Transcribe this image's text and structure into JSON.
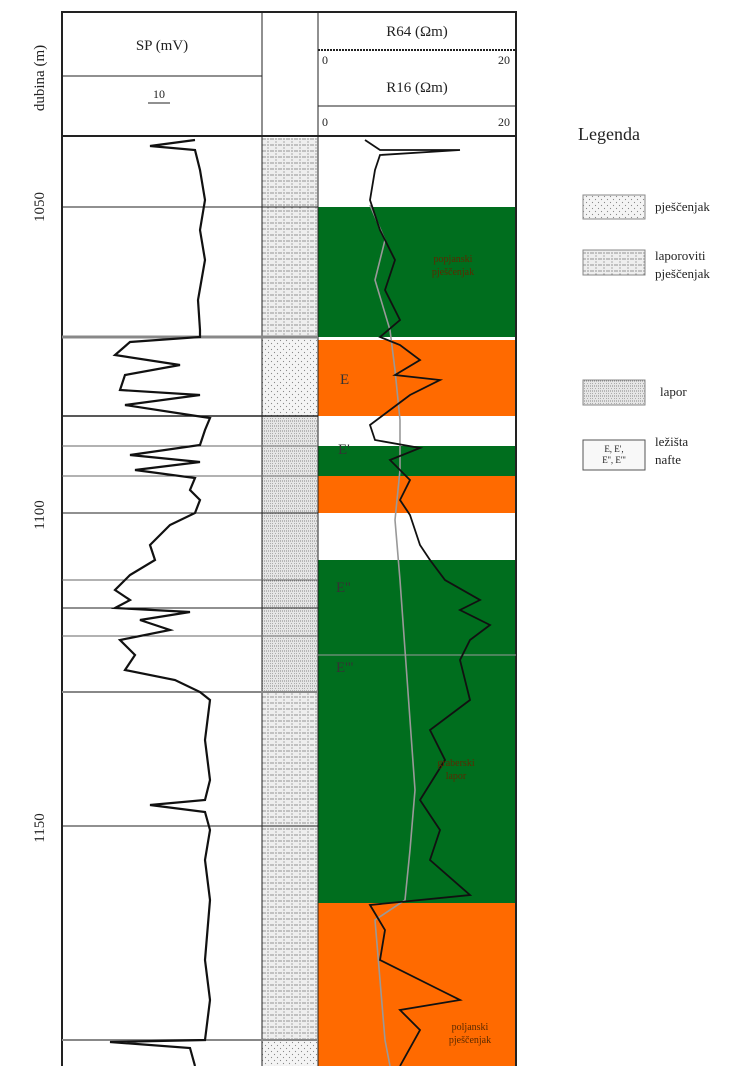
{
  "header": {
    "depth_label": "dubina (m)",
    "sp": "SP (mV)",
    "sp_scale": "10",
    "r64": "R64 (Ωm)",
    "r64_min": "0",
    "r64_max": "20",
    "r16": "R16 (Ωm)",
    "r16_min": "0",
    "r16_max": "20"
  },
  "depth_ticks": [
    "1050",
    "1100",
    "1150"
  ],
  "zones": {
    "popjanski": [
      "popjanski",
      "pješčenjak"
    ],
    "E": "E",
    "E1": "E'",
    "E2": "E''",
    "E3": "E'''",
    "graberski": [
      "graberski",
      "lapor"
    ],
    "poljanski": [
      "poljanski",
      "pješčenjak"
    ]
  },
  "legend": {
    "title": "Legenda",
    "items": [
      {
        "label": [
          "pješčenjak"
        ]
      },
      {
        "label": [
          "laporoviti",
          "pješčenjak"
        ]
      },
      {
        "label": [
          "lapor"
        ]
      },
      {
        "symbol": [
          "E, E',",
          "E'', E'''"
        ],
        "label": [
          "ležišta",
          "nafte"
        ]
      }
    ]
  }
}
